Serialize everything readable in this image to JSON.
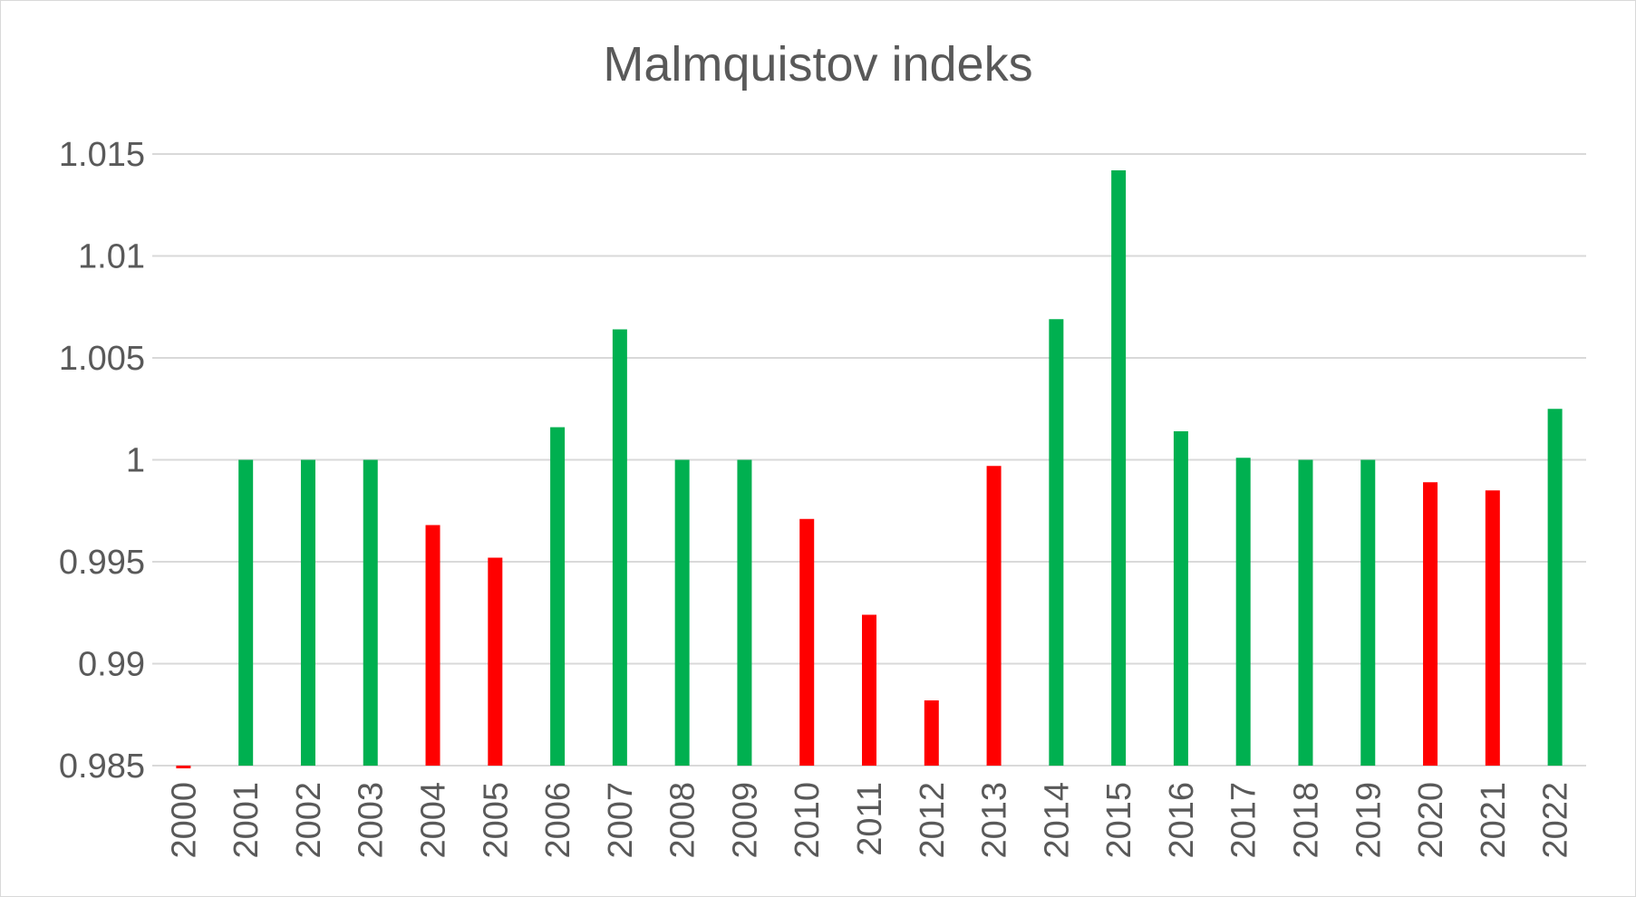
{
  "chart_data": {
    "type": "bar",
    "title": "Malmquistov indeks",
    "xlabel": "",
    "ylabel": "",
    "ylim": [
      0.985,
      1.015
    ],
    "yticks": [
      "0.985",
      "0.99",
      "0.995",
      "1",
      "1.005",
      "1.01",
      "1.015"
    ],
    "grid": true,
    "legend": "none",
    "categories": [
      "2000",
      "2001",
      "2002",
      "2003",
      "2004",
      "2005",
      "2006",
      "2007",
      "2008",
      "2009",
      "2010",
      "2011",
      "2012",
      "2013",
      "2014",
      "2015",
      "2016",
      "2017",
      "2018",
      "2019",
      "2020",
      "2021",
      "2022"
    ],
    "values": [
      0.9849,
      1.0,
      1.0,
      1.0,
      0.9968,
      0.9952,
      1.0016,
      1.0064,
      1.0,
      1.0,
      0.9971,
      0.9924,
      0.9882,
      0.9997,
      1.0069,
      1.0142,
      1.0014,
      1.0001,
      1.0,
      1.0,
      0.9989,
      0.9985,
      1.0025
    ],
    "colors": {
      "increase": "#00b050",
      "decrease": "#ff0000",
      "grid": "#d9d9d9",
      "text": "#595959"
    }
  }
}
